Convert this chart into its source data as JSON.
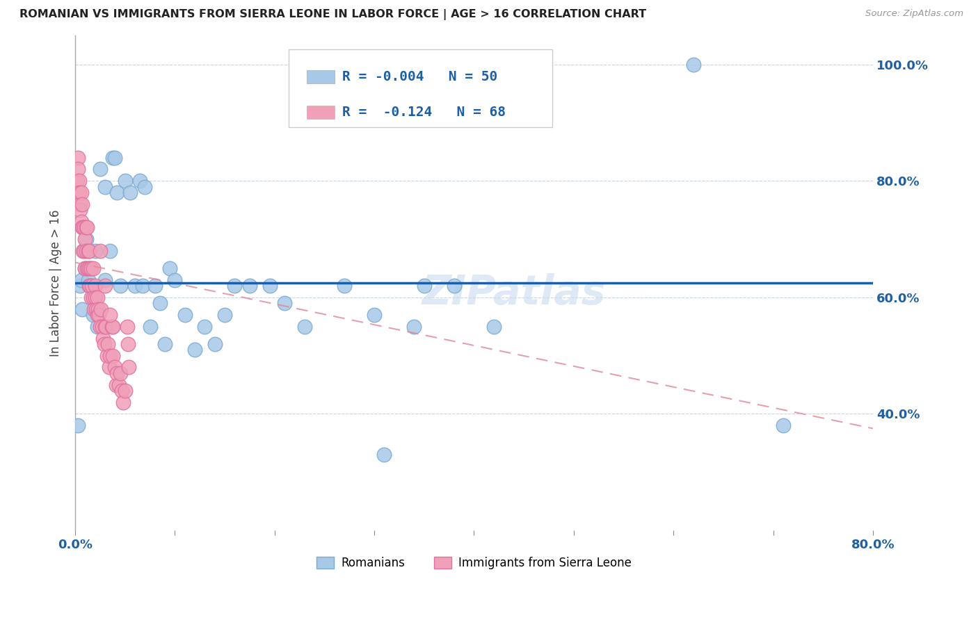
{
  "title": "ROMANIAN VS IMMIGRANTS FROM SIERRA LEONE IN LABOR FORCE | AGE > 16 CORRELATION CHART",
  "source": "Source: ZipAtlas.com",
  "ylabel": "In Labor Force | Age > 16",
  "xlim": [
    0.0,
    0.8
  ],
  "ylim": [
    0.2,
    1.05
  ],
  "blue_R": -0.004,
  "blue_N": 50,
  "pink_R": -0.124,
  "pink_N": 68,
  "legend_label_blue": "Romanians",
  "legend_label_pink": "Immigrants from Sierra Leone",
  "blue_color": "#a8c8e8",
  "pink_color": "#f0a0b8",
  "blue_line_color": "#1a5fa8",
  "pink_line_color": "#e08898",
  "background_color": "#ffffff",
  "grid_color": "#c8d4e4",
  "watermark": "ZIPatlas",
  "blue_line_y_intercept": 0.625,
  "blue_line_slope": 0.0,
  "pink_line_y_start": 0.66,
  "pink_line_y_end": 0.375,
  "blue_dots_x": [
    0.003,
    0.005,
    0.006,
    0.007,
    0.01,
    0.011,
    0.013,
    0.016,
    0.018,
    0.02,
    0.022,
    0.025,
    0.03,
    0.03,
    0.035,
    0.038,
    0.04,
    0.042,
    0.045,
    0.05,
    0.055,
    0.06,
    0.065,
    0.068,
    0.07,
    0.075,
    0.08,
    0.085,
    0.09,
    0.095,
    0.1,
    0.11,
    0.12,
    0.13,
    0.14,
    0.15,
    0.16,
    0.175,
    0.195,
    0.21,
    0.23,
    0.27,
    0.31,
    0.34,
    0.38,
    0.42,
    0.3,
    0.35,
    0.62,
    0.71
  ],
  "blue_dots_y": [
    0.38,
    0.62,
    0.63,
    0.58,
    0.65,
    0.7,
    0.63,
    0.62,
    0.57,
    0.68,
    0.55,
    0.82,
    0.63,
    0.79,
    0.68,
    0.84,
    0.84,
    0.78,
    0.62,
    0.8,
    0.78,
    0.62,
    0.8,
    0.62,
    0.79,
    0.55,
    0.62,
    0.59,
    0.52,
    0.65,
    0.63,
    0.57,
    0.51,
    0.55,
    0.52,
    0.57,
    0.62,
    0.62,
    0.62,
    0.59,
    0.55,
    0.62,
    0.33,
    0.55,
    0.62,
    0.55,
    0.57,
    0.62,
    1.0,
    0.38
  ],
  "pink_dots_x": [
    0.002,
    0.003,
    0.003,
    0.004,
    0.004,
    0.005,
    0.005,
    0.006,
    0.006,
    0.007,
    0.007,
    0.008,
    0.008,
    0.009,
    0.009,
    0.01,
    0.01,
    0.011,
    0.011,
    0.012,
    0.012,
    0.013,
    0.013,
    0.014,
    0.014,
    0.015,
    0.015,
    0.016,
    0.016,
    0.017,
    0.018,
    0.018,
    0.019,
    0.02,
    0.02,
    0.021,
    0.022,
    0.022,
    0.023,
    0.024,
    0.025,
    0.026,
    0.027,
    0.028,
    0.029,
    0.03,
    0.031,
    0.032,
    0.033,
    0.034,
    0.035,
    0.037,
    0.038,
    0.04,
    0.041,
    0.042,
    0.044,
    0.045,
    0.047,
    0.048,
    0.05,
    0.052,
    0.053,
    0.054,
    0.038,
    0.035,
    0.03,
    0.025
  ],
  "pink_dots_y": [
    0.8,
    0.84,
    0.82,
    0.8,
    0.78,
    0.76,
    0.75,
    0.73,
    0.78,
    0.72,
    0.76,
    0.72,
    0.68,
    0.72,
    0.68,
    0.7,
    0.65,
    0.68,
    0.72,
    0.65,
    0.72,
    0.65,
    0.68,
    0.62,
    0.68,
    0.62,
    0.65,
    0.65,
    0.6,
    0.62,
    0.65,
    0.6,
    0.58,
    0.62,
    0.6,
    0.58,
    0.6,
    0.57,
    0.58,
    0.57,
    0.55,
    0.58,
    0.55,
    0.53,
    0.52,
    0.55,
    0.55,
    0.5,
    0.52,
    0.48,
    0.5,
    0.55,
    0.5,
    0.48,
    0.45,
    0.47,
    0.45,
    0.47,
    0.44,
    0.42,
    0.44,
    0.55,
    0.52,
    0.48,
    0.55,
    0.57,
    0.62,
    0.68
  ]
}
